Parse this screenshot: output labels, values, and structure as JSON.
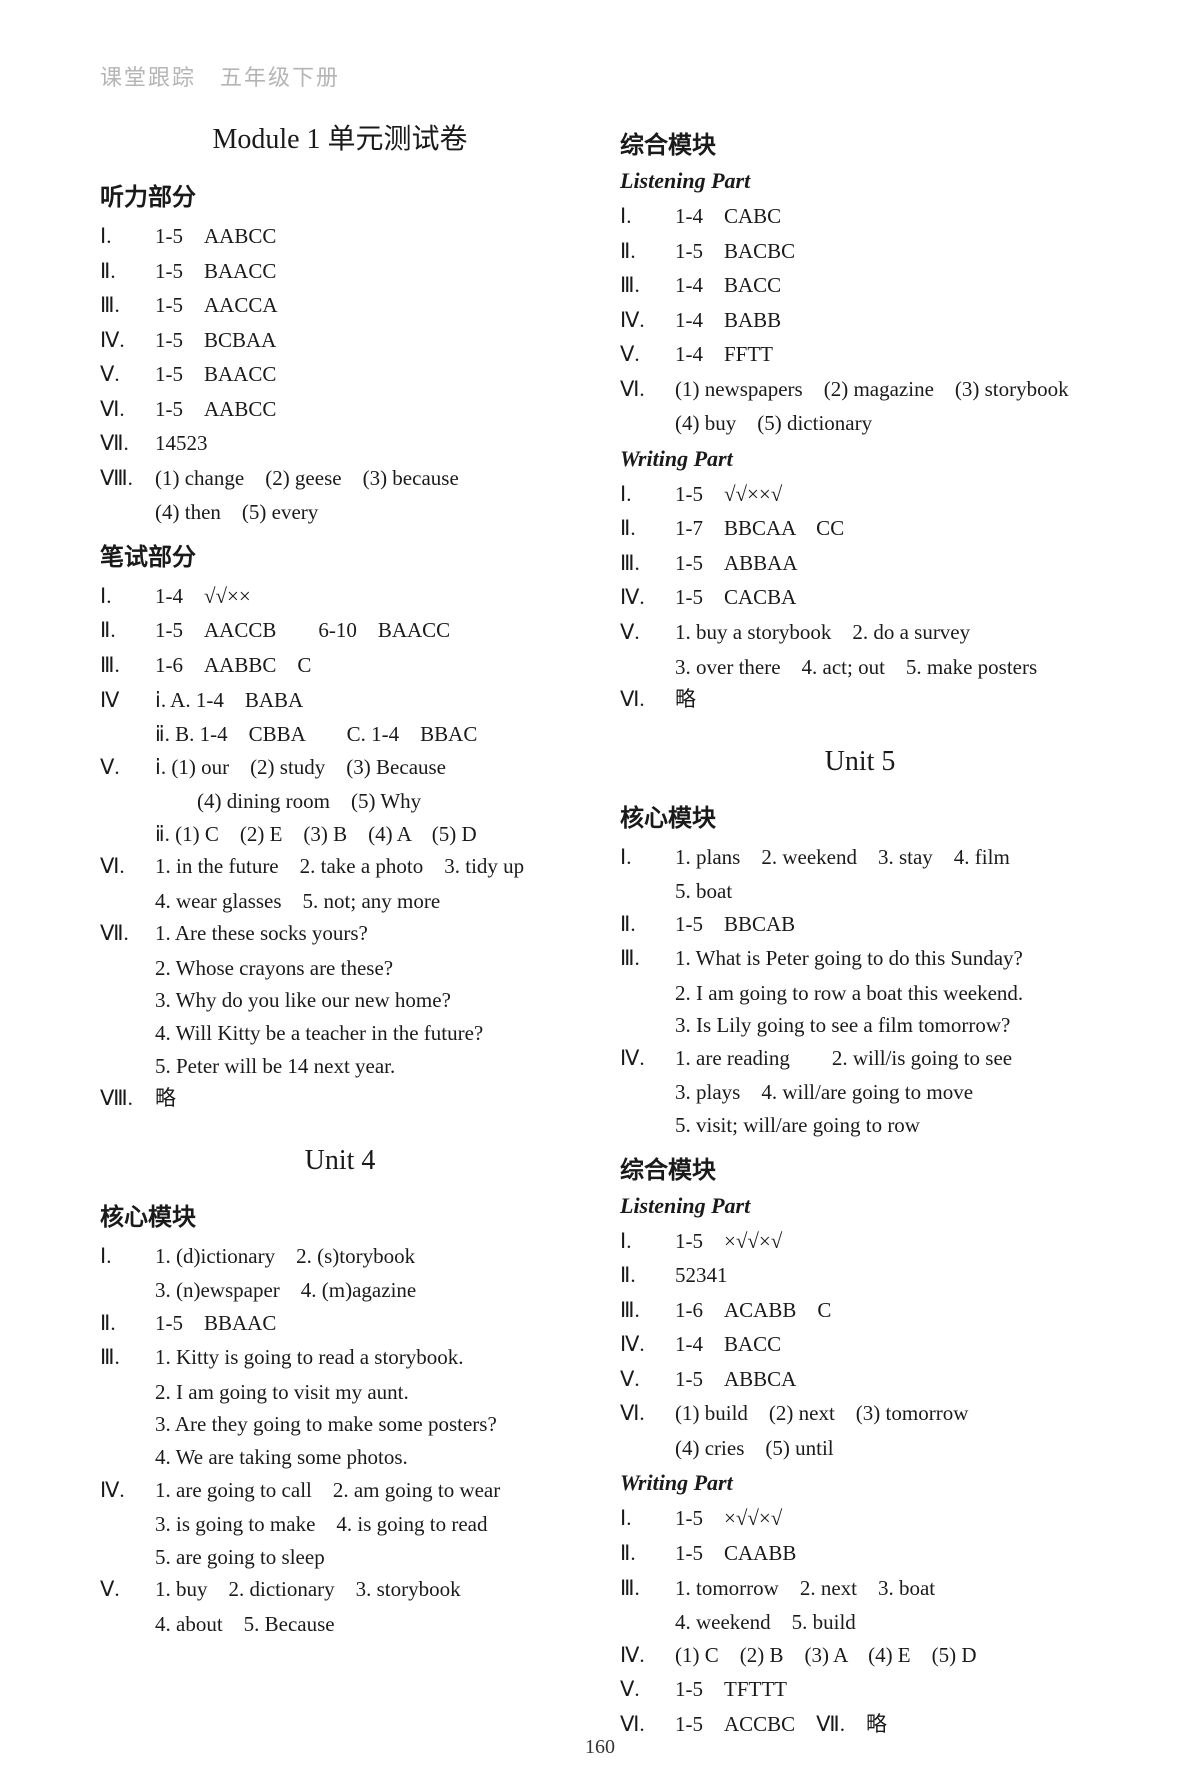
{
  "header": "课堂跟踪　五年级下册",
  "page_number": "160",
  "colors": {
    "text": "#1a1a1a",
    "header_text": "#b5b5b5",
    "background": "#ffffff"
  },
  "typography": {
    "body_fontsize": 21,
    "title_fontsize": 28,
    "section_fontsize": 24
  },
  "left_column": {
    "title1": "Module 1 单元测试卷",
    "sec1": "听力部分",
    "items1": [
      {
        "r": "Ⅰ.",
        "c": "1-5　AABCC"
      },
      {
        "r": "Ⅱ.",
        "c": "1-5　BAACC"
      },
      {
        "r": "Ⅲ.",
        "c": "1-5　AACCA"
      },
      {
        "r": "Ⅳ.",
        "c": "1-5　BCBAA"
      },
      {
        "r": "Ⅴ.",
        "c": "1-5　BAACC"
      },
      {
        "r": "Ⅵ.",
        "c": "1-5　AABCC"
      },
      {
        "r": "Ⅶ.",
        "c": "14523"
      },
      {
        "r": "Ⅷ.",
        "c": "(1) change　(2) geese　(3) because"
      }
    ],
    "items1_cont": "(4) then　(5) every",
    "sec2": "笔试部分",
    "items2": [
      {
        "r": "Ⅰ.",
        "c": "1-4　√√××"
      },
      {
        "r": "Ⅱ.",
        "c": "1-5　AACCB　　6-10　BAACC"
      },
      {
        "r": "Ⅲ.",
        "c": "1-6　AABBC　C"
      },
      {
        "r": "Ⅳ",
        "c": "ⅰ. A. 1-4　BABA"
      }
    ],
    "items2_cont1": "ⅱ. B. 1-4　CBBA　　C. 1-4　BBAC",
    "items2_v": {
      "r": "Ⅴ.",
      "c": "ⅰ. (1) our　(2) study　(3) Because"
    },
    "items2_v_cont1": "　　(4) dining room　(5) Why",
    "items2_v_cont2": "ⅱ. (1) C　(2) E　(3) B　(4) A　(5) D",
    "items2_vi": {
      "r": "Ⅵ.",
      "c": "1. in the future　2. take a photo　3. tidy up"
    },
    "items2_vi_cont": "4. wear glasses　5. not; any more",
    "items2_vii": {
      "r": "Ⅶ.",
      "c": "1. Are these socks yours?"
    },
    "items2_vii_2": "2. Whose crayons are these?",
    "items2_vii_3": "3. Why do you like our new home?",
    "items2_vii_4": "4. Will Kitty be a teacher in the future?",
    "items2_vii_5": "5. Peter will be 14 next year.",
    "items2_viii": {
      "r": "Ⅷ.",
      "c": "略"
    },
    "unit4_title": "Unit 4",
    "sec3": "核心模块",
    "u4_i": {
      "r": "Ⅰ.",
      "c": "1. (d)ictionary　2. (s)torybook"
    },
    "u4_i_cont": "3. (n)ewspaper　4. (m)agazine",
    "u4_ii": {
      "r": "Ⅱ.",
      "c": "1-5　BBAAC"
    },
    "u4_iii": {
      "r": "Ⅲ.",
      "c": "1. Kitty is going to read a storybook."
    },
    "u4_iii_2": "2. I am going to visit my aunt.",
    "u4_iii_3": "3. Are they going to make some posters?",
    "u4_iii_4": "4. We are taking some photos.",
    "u4_iv": {
      "r": "Ⅳ.",
      "c": "1. are going to call　2. am going to wear"
    },
    "u4_iv_2": "3. is going to make　4. is going to read",
    "u4_iv_3": "5. are going to sleep",
    "u4_v": {
      "r": "Ⅴ.",
      "c": "1. buy　2. dictionary　3. storybook"
    },
    "u4_v_2": "4. about　5. Because"
  },
  "right_column": {
    "sec1": "综合模块",
    "sec1_sub1": "Listening Part",
    "r1": [
      {
        "r": "Ⅰ.",
        "c": "1-4　CABC"
      },
      {
        "r": "Ⅱ.",
        "c": "1-5　BACBC"
      },
      {
        "r": "Ⅲ.",
        "c": "1-4　BACC"
      },
      {
        "r": "Ⅳ.",
        "c": "1-4　BABB"
      },
      {
        "r": "Ⅴ.",
        "c": "1-4　FFTT"
      },
      {
        "r": "Ⅵ.",
        "c": "(1) newspapers　(2) magazine　(3) storybook"
      }
    ],
    "r1_cont": "(4) buy　(5) dictionary",
    "sec1_sub2": "Writing Part",
    "r2": [
      {
        "r": "Ⅰ.",
        "c": "1-5　√√××√"
      },
      {
        "r": "Ⅱ.",
        "c": "1-7　BBCAA　CC"
      },
      {
        "r": "Ⅲ.",
        "c": "1-5　ABBAA"
      },
      {
        "r": "Ⅳ.",
        "c": "1-5　CACBA"
      },
      {
        "r": "Ⅴ.",
        "c": "1. buy a storybook　2. do a survey"
      }
    ],
    "r2_cont": "3. over there　4. act; out　5. make posters",
    "r2_vi": {
      "r": "Ⅵ.",
      "c": "略"
    },
    "unit5_title": "Unit 5",
    "sec2": "核心模块",
    "u5_i": {
      "r": "Ⅰ.",
      "c": "1. plans　2. weekend　3. stay　4. film"
    },
    "u5_i_cont": "5. boat",
    "u5_ii": {
      "r": "Ⅱ.",
      "c": "1-5　BBCAB"
    },
    "u5_iii": {
      "r": "Ⅲ.",
      "c": "1. What is Peter going to do this Sunday?"
    },
    "u5_iii_2": "2. I am going to row a boat this weekend.",
    "u5_iii_3": "3. Is Lily going to see a film tomorrow?",
    "u5_iv": {
      "r": "Ⅳ.",
      "c": "1. are reading　　2. will/is going to see"
    },
    "u5_iv_2": "3. plays　4. will/are going to move",
    "u5_iv_3": "5. visit; will/are going to row",
    "sec3": "综合模块",
    "sec3_sub1": "Listening Part",
    "r3": [
      {
        "r": "Ⅰ.",
        "c": "1-5　×√√×√"
      },
      {
        "r": "Ⅱ.",
        "c": "52341"
      },
      {
        "r": "Ⅲ.",
        "c": "1-6　ACABB　C"
      },
      {
        "r": "Ⅳ.",
        "c": "1-4　BACC"
      },
      {
        "r": "Ⅴ.",
        "c": "1-5　ABBCA"
      },
      {
        "r": "Ⅵ.",
        "c": "(1) build　(2) next　(3) tomorrow"
      }
    ],
    "r3_cont": "(4) cries　(5) until",
    "sec3_sub2": "Writing Part",
    "r4": [
      {
        "r": "Ⅰ.",
        "c": "1-5　×√√×√"
      },
      {
        "r": "Ⅱ.",
        "c": "1-5　CAABB"
      },
      {
        "r": "Ⅲ.",
        "c": "1. tomorrow　2. next　3. boat"
      }
    ],
    "r4_cont": "4. weekend　5. build",
    "r4_iv": {
      "r": "Ⅳ.",
      "c": "(1) C　(2) B　(3) A　(4) E　(5) D"
    },
    "r4_v": {
      "r": "Ⅴ.",
      "c": "1-5　TFTTT"
    },
    "r4_vi": {
      "r": "Ⅵ.",
      "c": "1-5　ACCBC　Ⅶ.　略"
    }
  }
}
